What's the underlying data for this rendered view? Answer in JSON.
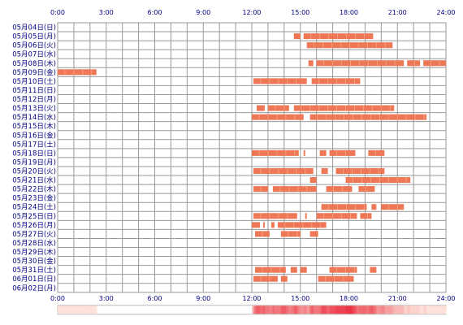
{
  "chart_data": {
    "type": "timeline",
    "title": "",
    "xlabel": "",
    "ylabel": "",
    "x_unit": "hours",
    "xlim": [
      0,
      24
    ],
    "x_ticks": [
      "0:00",
      "3:00",
      "6:00",
      "9:00",
      "12:00",
      "15:00",
      "18:00",
      "21:00",
      "24:00"
    ],
    "grid": true,
    "colors": {
      "bar": "#ee7755",
      "bar_light": "#f59e82",
      "grid": "#999999",
      "label": "#000080"
    },
    "rows": [
      {
        "label": "05月04日(日)",
        "segments": []
      },
      {
        "label": "05月05日(月)",
        "segments": [
          [
            14.6,
            15.0
          ],
          [
            15.2,
            19.5
          ]
        ]
      },
      {
        "label": "05月06日(火)",
        "segments": [
          [
            15.4,
            20.7
          ]
        ]
      },
      {
        "label": "05月07日(水)",
        "segments": []
      },
      {
        "label": "05月08日(木)",
        "segments": [
          [
            15.5,
            15.8
          ],
          [
            16.0,
            21.4
          ],
          [
            21.6,
            22.4
          ],
          [
            22.6,
            24.0
          ]
        ]
      },
      {
        "label": "05月09日(金)",
        "segments": [
          [
            0.0,
            2.4
          ]
        ]
      },
      {
        "label": "05月10日(土)",
        "segments": [
          [
            12.1,
            15.4
          ],
          [
            15.7,
            18.7
          ]
        ]
      },
      {
        "label": "05月11日(日)",
        "segments": []
      },
      {
        "label": "05月12日(月)",
        "segments": []
      },
      {
        "label": "05月13日(火)",
        "segments": [
          [
            12.3,
            12.8
          ],
          [
            13.0,
            14.3
          ],
          [
            14.6,
            20.8
          ]
        ]
      },
      {
        "label": "05月14日(水)",
        "segments": [
          [
            12.0,
            15.2
          ],
          [
            15.6,
            22.8
          ]
        ]
      },
      {
        "label": "05月15日(木)",
        "segments": []
      },
      {
        "label": "05月16日(金)",
        "segments": []
      },
      {
        "label": "05月17日(土)",
        "segments": []
      },
      {
        "label": "05月18日(日)",
        "segments": [
          [
            12.0,
            14.9
          ],
          [
            15.2,
            15.3
          ],
          [
            16.2,
            16.6
          ],
          [
            16.8,
            18.4
          ],
          [
            19.2,
            20.2
          ]
        ]
      },
      {
        "label": "05月19日(月)",
        "segments": []
      },
      {
        "label": "05月20日(火)",
        "segments": [
          [
            12.1,
            15.8
          ],
          [
            16.3,
            16.7
          ],
          [
            17.2,
            20.2
          ]
        ]
      },
      {
        "label": "05月21日(水)",
        "segments": [
          [
            15.6,
            16.0
          ],
          [
            17.8,
            21.8
          ]
        ]
      },
      {
        "label": "05月22日(木)",
        "segments": [
          [
            12.1,
            13.0
          ],
          [
            13.3,
            16.0
          ],
          [
            16.6,
            18.2
          ],
          [
            18.6,
            19.6
          ]
        ]
      },
      {
        "label": "05月23日(金)",
        "segments": []
      },
      {
        "label": "05月24日(土)",
        "segments": [
          [
            16.3,
            19.1
          ],
          [
            19.4,
            19.7
          ],
          [
            20.0,
            21.4
          ]
        ]
      },
      {
        "label": "05月25日(日)",
        "segments": [
          [
            12.1,
            14.8
          ],
          [
            15.3,
            15.4
          ],
          [
            16.0,
            18.5
          ],
          [
            18.7,
            19.4
          ]
        ]
      },
      {
        "label": "05月26日(月)",
        "segments": [
          [
            12.0,
            12.5
          ],
          [
            12.7,
            12.8
          ],
          [
            13.2,
            13.4
          ],
          [
            13.6,
            16.6
          ]
        ]
      },
      {
        "label": "05月27日(火)",
        "segments": [
          [
            12.2,
            13.1
          ],
          [
            13.8,
            15.0
          ],
          [
            15.6,
            16.1
          ]
        ]
      },
      {
        "label": "05月28日(水)",
        "segments": []
      },
      {
        "label": "05月29日(木)",
        "segments": []
      },
      {
        "label": "05月30日(金)",
        "segments": []
      },
      {
        "label": "05月31日(土)",
        "segments": [
          [
            12.2,
            14.1
          ],
          [
            14.4,
            14.8
          ],
          [
            15.0,
            15.4
          ],
          [
            16.8,
            18.5
          ],
          [
            19.3,
            19.7
          ]
        ]
      },
      {
        "label": "06月01日(日)",
        "segments": [
          [
            12.1,
            13.6
          ],
          [
            13.8,
            14.2
          ],
          [
            16.1,
            18.3
          ]
        ]
      },
      {
        "label": "06月02日(月)",
        "segments": []
      }
    ]
  }
}
